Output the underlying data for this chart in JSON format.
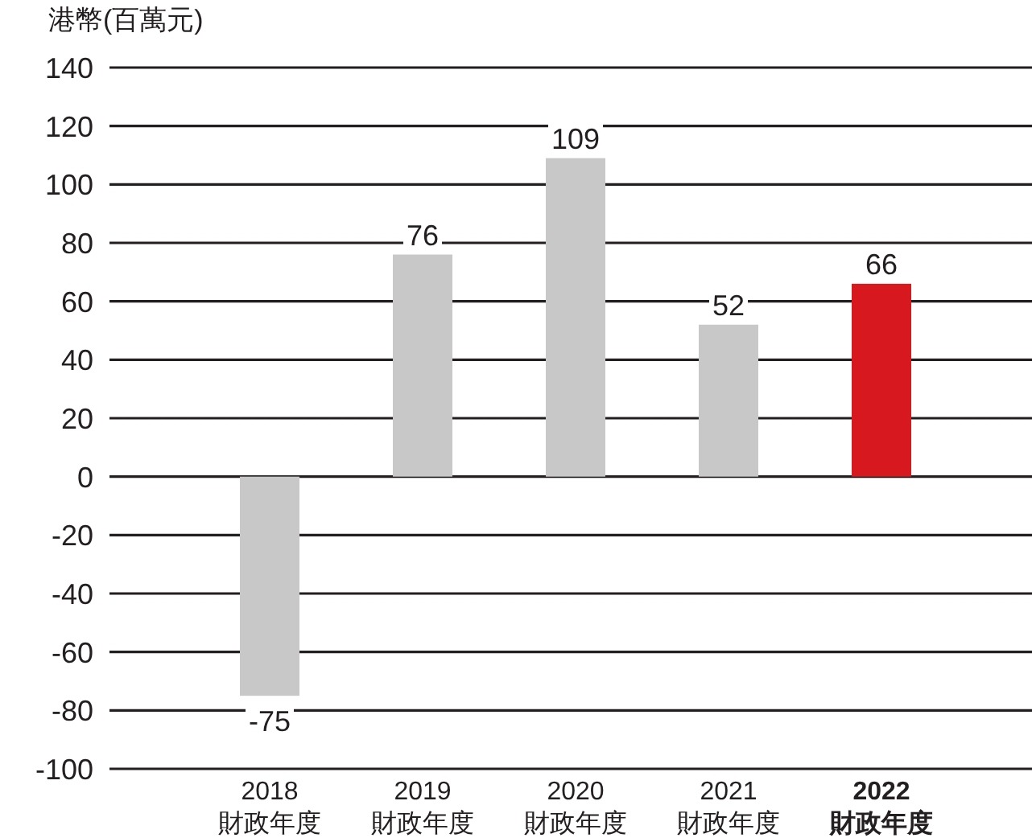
{
  "chart_data": {
    "type": "bar",
    "ylabel": "港幣(百萬元)",
    "categories": [
      "2018\n財政年度",
      "2019\n財政年度",
      "2020\n財政年度",
      "2021\n財政年度",
      "**2022\n財政年度**"
    ],
    "values": [
      -75,
      76,
      109,
      52,
      66
    ],
    "colors": [
      "#c8c8c8",
      "#c8c8c8",
      "#c8c8c8",
      "#c8c8c8",
      "#d7191f"
    ],
    "ylim": [
      -100,
      140
    ],
    "yticks": [
      -100,
      -80,
      -60,
      -40,
      -20,
      0,
      20,
      40,
      60,
      80,
      100,
      120,
      140
    ],
    "grid": "y",
    "data_labels": true
  }
}
